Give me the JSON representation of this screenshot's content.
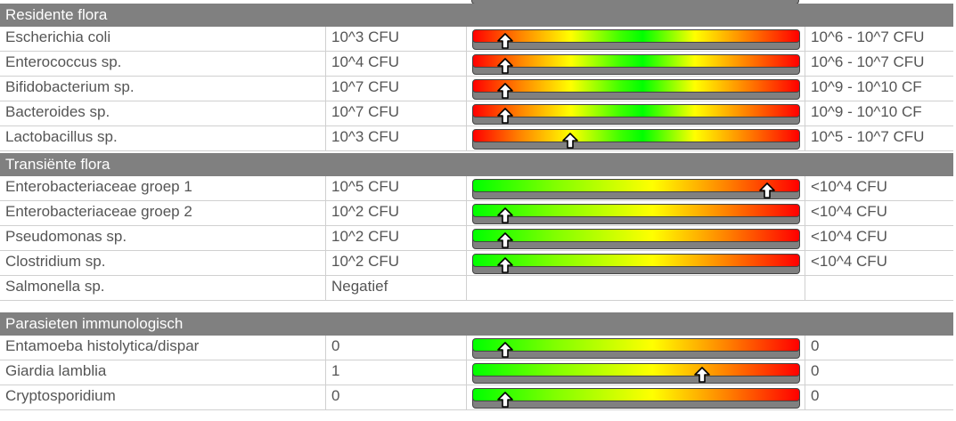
{
  "sections": [
    {
      "title": "Residente flora",
      "rows": [
        {
          "name": "Escherichia coli",
          "result": "10^3 CFU",
          "reference": "10^6 - 10^7 CFU"
        },
        {
          "name": "Enterococcus sp.",
          "result": "10^4 CFU",
          "reference": "10^6 - 10^7 CFU"
        },
        {
          "name": "Bifidobacterium sp.",
          "result": "10^7 CFU",
          "reference": "10^9 - 10^10 CF"
        },
        {
          "name": "Bacteroides sp.",
          "result": "10^7 CFU",
          "reference": "10^9 - 10^10 CF"
        },
        {
          "name": "Lactobacillus sp.",
          "result": "10^3 CFU",
          "reference": "10^5 - 10^7 CFU"
        }
      ]
    },
    {
      "title": "Transiënte flora",
      "rows": [
        {
          "name": "Enterobacteriaceae groep 1",
          "result": "10^5 CFU",
          "reference": "<10^4 CFU"
        },
        {
          "name": "Enterobacteriaceae groep 2",
          "result": "10^2 CFU",
          "reference": "<10^4 CFU"
        },
        {
          "name": "Pseudomonas sp.",
          "result": "10^2 CFU",
          "reference": "<10^4 CFU"
        },
        {
          "name": "Clostridium sp.",
          "result": "10^2 CFU",
          "reference": "<10^4 CFU"
        },
        {
          "name": "Salmonella sp.",
          "result": "Negatief"
        }
      ]
    },
    {
      "title": "Parasieten immunologisch",
      "rows": [
        {
          "name": "Entamoeba histolytica/dispar",
          "result": "0",
          "reference": "0"
        },
        {
          "name": "Giardia lamblia",
          "result": "1",
          "reference": "0"
        },
        {
          "name": "Cryptosporidium",
          "result": "0",
          "reference": "0"
        }
      ]
    }
  ]
}
